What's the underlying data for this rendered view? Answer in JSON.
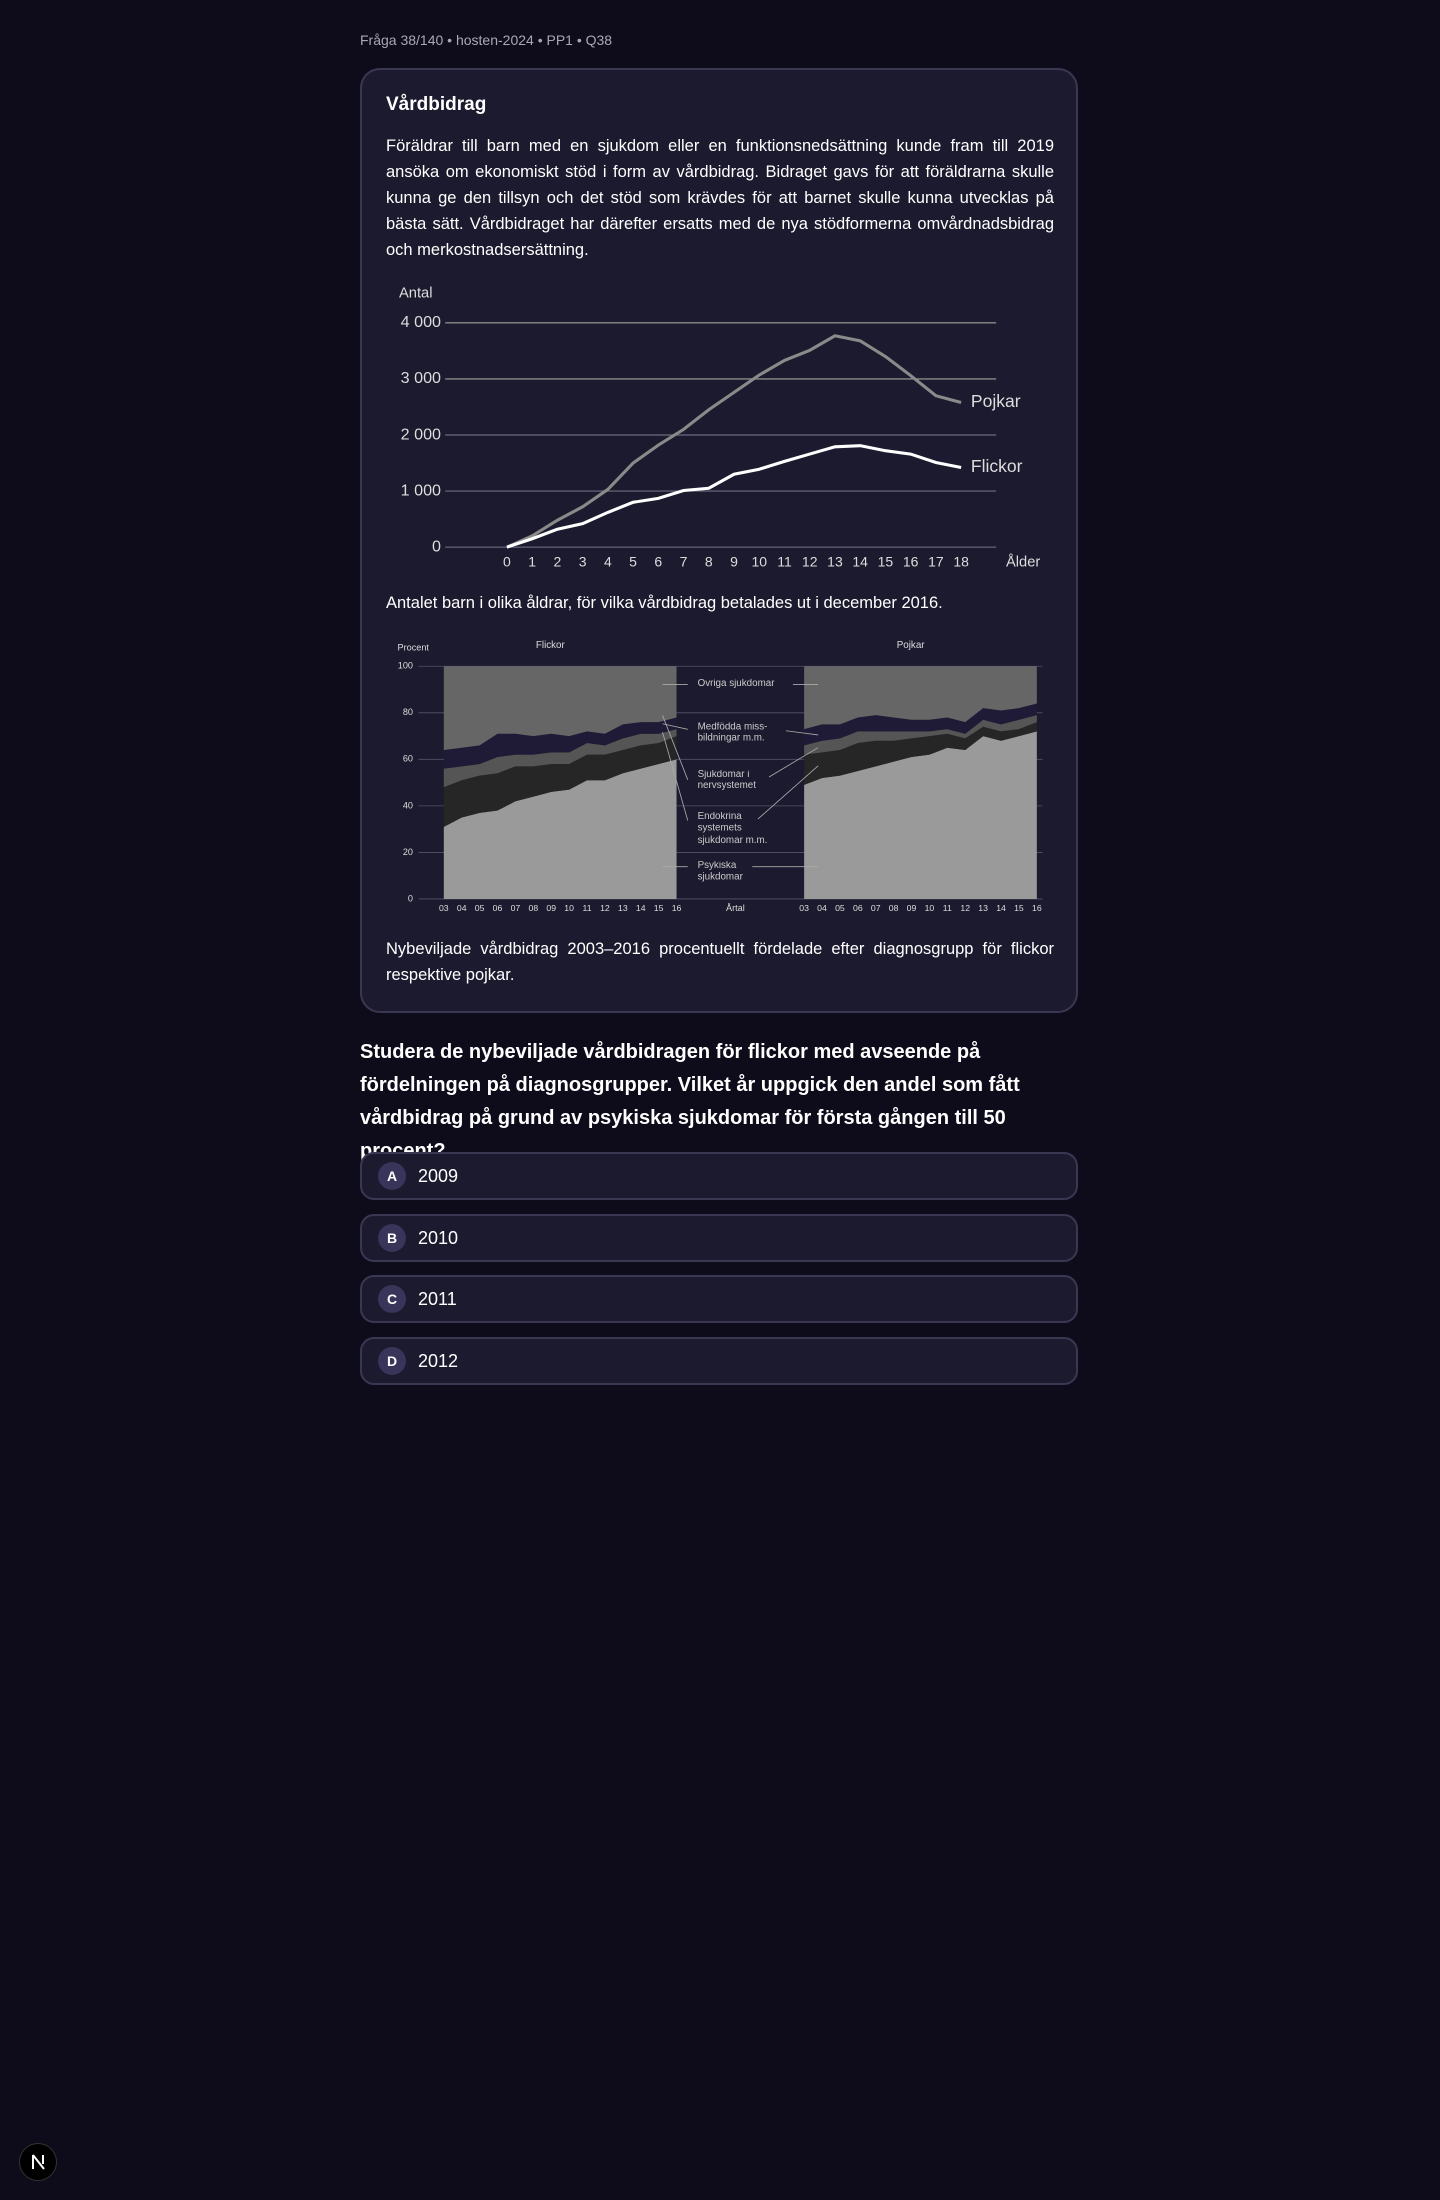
{
  "header": {
    "breadcrumb": "Fråga 38/140 • hosten-2024 • PP1 • Q38"
  },
  "passage": {
    "title": "Vårdbidrag",
    "text": "Föräldrar till barn med en sjukdom eller en funktionsnedsättning kunde fram till 2019 ansöka om ekonomiskt stöd i form av vårdbidrag. Bidraget gavs för att föräldrarna skulle kunna ge den tillsyn och det stöd som krävdes för att barnet skulle kunna utvecklas på bästa sätt. Vårdbidraget har därefter ersatts med de nya stödformerna omvårdnadsbidrag och merkostnadsersättning.",
    "captions": [
      "Antalet barn i olika åldrar, för vilka vårdbidrag betalades ut i december 2016.",
      "Nybeviljade vårdbidrag 2003–2016 procentuellt fördelade efter diagnosgrupp för flickor respektive pojkar."
    ]
  },
  "chart_data": [
    {
      "type": "line",
      "ylabel": "Antal",
      "xlabel": "Ålder",
      "x": [
        0,
        1,
        2,
        3,
        4,
        5,
        6,
        7,
        8,
        9,
        10,
        11,
        12,
        13,
        14,
        15,
        16,
        17,
        18
      ],
      "xlim": [
        0,
        18
      ],
      "xticks": [
        0,
        1,
        2,
        3,
        4,
        5,
        6,
        7,
        8,
        9,
        10,
        11,
        12,
        13,
        14,
        15,
        16,
        17,
        18
      ],
      "ylim": [
        0,
        4000
      ],
      "yticks": [
        0,
        {
          "value": 1000,
          "label": "1 000"
        },
        {
          "value": 2000,
          "label": "2 000"
        },
        {
          "value": 3000,
          "label": "3 000"
        },
        {
          "value": 4000,
          "label": "4 000"
        }
      ],
      "grid": true,
      "series": [
        {
          "name": "Pojkar",
          "color": "#8a8a8a",
          "values": [
            0,
            200,
            480,
            720,
            1030,
            1500,
            1820,
            2100,
            2450,
            2760,
            3070,
            3330,
            3510,
            3770,
            3680,
            3400,
            3060,
            2700,
            2580
          ]
        },
        {
          "name": "Flickor",
          "color": "#ffffff",
          "values": [
            0,
            150,
            320,
            420,
            620,
            800,
            870,
            1010,
            1050,
            1300,
            1390,
            1530,
            1660,
            1790,
            1810,
            1720,
            1660,
            1510,
            1420
          ]
        }
      ]
    },
    {
      "type": "stacked-area",
      "ylabel": "Procent",
      "xlabel": "Årtal",
      "categories": [
        "03",
        "04",
        "05",
        "06",
        "07",
        "08",
        "09",
        "10",
        "11",
        "12",
        "13",
        "14",
        "15",
        "16"
      ],
      "panels": [
        "Flickor",
        "Pojkar"
      ],
      "ylim": [
        0,
        100
      ],
      "yticks": [
        0,
        20,
        40,
        60,
        80,
        100
      ],
      "grid": true,
      "series": [
        {
          "name": "Psykiska sjukdomar",
          "color": "#9a9a9a",
          "values": [
            [
              31,
              35,
              37,
              38,
              42,
              44,
              46,
              47,
              51,
              51,
              54,
              56,
              58,
              60
            ],
            [
              49,
              52,
              53,
              55,
              57,
              59,
              61,
              62,
              65,
              64,
              70,
              68,
              70,
              72
            ]
          ]
        },
        {
          "name": "Endokrina systemets sjukdomar m.m.",
          "color": "#262626",
          "values": [
            [
              17,
              16,
              16,
              16,
              15,
              13,
              12,
              11,
              11,
              11,
              10,
              10,
              9,
              10
            ],
            [
              13,
              11,
              11,
              12,
              11,
              9,
              8,
              8,
              6,
              5,
              4,
              4,
              3,
              4
            ]
          ]
        },
        {
          "name": "Sjukdomar i nervsystemet",
          "color": "#555555",
          "values": [
            [
              8,
              6,
              5,
              7,
              5,
              5,
              5,
              5,
              5,
              4,
              5,
              5,
              4,
              3
            ],
            [
              4,
              5,
              5,
              5,
              4,
              4,
              3,
              2,
              2,
              2,
              3,
              3,
              4,
              3
            ]
          ]
        },
        {
          "name": "Medfödda miss- bildningar m.m.",
          "color": "#1f1b36",
          "values": [
            [
              8,
              8,
              8,
              10,
              9,
              8,
              8,
              7,
              5,
              5,
              6,
              5,
              5,
              5
            ],
            [
              7,
              7,
              6,
              6,
              7,
              6,
              5,
              5,
              5,
              5,
              5,
              6,
              5,
              5
            ]
          ]
        },
        {
          "name": "Övriga sjukdomar",
          "color": "#666666",
          "values": [
            [
              36,
              35,
              34,
              29,
              29,
              30,
              29,
              30,
              28,
              29,
              25,
              24,
              24,
              22
            ],
            [
              27,
              25,
              25,
              22,
              21,
              22,
              23,
              23,
              22,
              24,
              18,
              19,
              18,
              16
            ]
          ]
        }
      ]
    }
  ],
  "question": {
    "text": "Studera de nybeviljade vårdbidragen för flickor med avseende på fördelningen på diagnosgrupper. Vilket år uppgick den andel som fått vårdbidrag på grund av psykiska sjukdomar för första gången till 50 procent?",
    "options": [
      {
        "letter": "A",
        "text": "2009"
      },
      {
        "letter": "B",
        "text": "2010"
      },
      {
        "letter": "C",
        "text": "2011"
      },
      {
        "letter": "D",
        "text": "2012"
      }
    ]
  }
}
